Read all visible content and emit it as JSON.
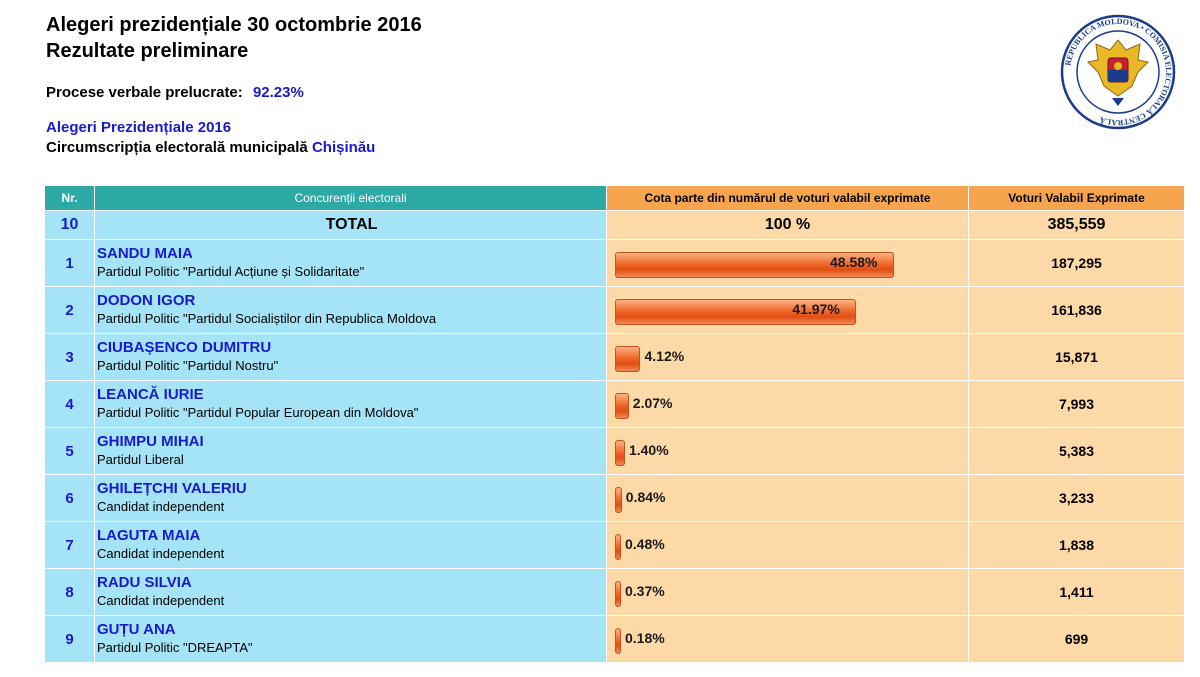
{
  "header": {
    "title_line1": "Alegeri prezidențiale 30 octombrie 2016",
    "title_line2": "Rezultate preliminare"
  },
  "processed": {
    "label": "Procese verbale prelucrate:",
    "value": "92.23%"
  },
  "election_link": "Alegeri Prezidențiale 2016",
  "circumscription": {
    "label": "Circumscripția electorală municipală",
    "city": "Chișinău"
  },
  "seal": {
    "text": "REPUBLICA MOLDOVA • COMISIA ELECTORALĂ CENTRALĂ"
  },
  "table": {
    "headers": {
      "nr": "Nr.",
      "name": "Concurenții electorali",
      "share": "Cota parte din numărul de voturi valabil exprimate",
      "votes": "Voturi Valabil Exprimate"
    },
    "total": {
      "nr": "10",
      "label": "TOTAL",
      "share": "100 %",
      "votes": "385,559"
    },
    "rows": [
      {
        "nr": "1",
        "name": "SANDU MAIA",
        "party": "Partidul Politic \"Partidul Acțiune și Solidaritate\"",
        "share": "48.58%",
        "pct": 48.58,
        "votes": "187,295"
      },
      {
        "nr": "2",
        "name": "DODON IGOR",
        "party": "Partidul Politic \"Partidul Socialiștilor din Republica Moldova",
        "share": "41.97%",
        "pct": 41.97,
        "votes": "161,836"
      },
      {
        "nr": "3",
        "name": "CIUBAȘENCO DUMITRU",
        "party": "Partidul Politic \"Partidul Nostru\"",
        "share": "4.12%",
        "pct": 4.12,
        "votes": "15,871"
      },
      {
        "nr": "4",
        "name": "LEANCĂ IURIE",
        "party": "Partidul Politic \"Partidul Popular European din Moldova\"",
        "share": "2.07%",
        "pct": 2.07,
        "votes": "7,993"
      },
      {
        "nr": "5",
        "name": "GHIMPU MIHAI",
        "party": "Partidul Liberal",
        "share": "1.40%",
        "pct": 1.4,
        "votes": "5,383"
      },
      {
        "nr": "6",
        "name": "GHILEȚCHI VALERIU",
        "party": "Candidat independent",
        "share": "0.84%",
        "pct": 0.84,
        "votes": "3,233"
      },
      {
        "nr": "7",
        "name": "LAGUTA MAIA",
        "party": "Candidat independent",
        "share": "0.48%",
        "pct": 0.48,
        "votes": "1,838"
      },
      {
        "nr": "8",
        "name": "RADU SILVIA",
        "party": "Candidat independent",
        "share": "0.37%",
        "pct": 0.37,
        "votes": "1,411"
      },
      {
        "nr": "9",
        "name": "GUȚU ANA",
        "party": "Partidul Politic \"DREAPTA\"",
        "share": "0.18%",
        "pct": 0.18,
        "votes": "699"
      }
    ]
  },
  "colors": {
    "link_blue": "#1a1acc",
    "header_teal": "#2ca9a4",
    "header_orange": "#f6a54e",
    "name_bg": "#a5e4f7",
    "value_bg": "#fdd9a7",
    "bar_orange": "#f06a2c"
  }
}
